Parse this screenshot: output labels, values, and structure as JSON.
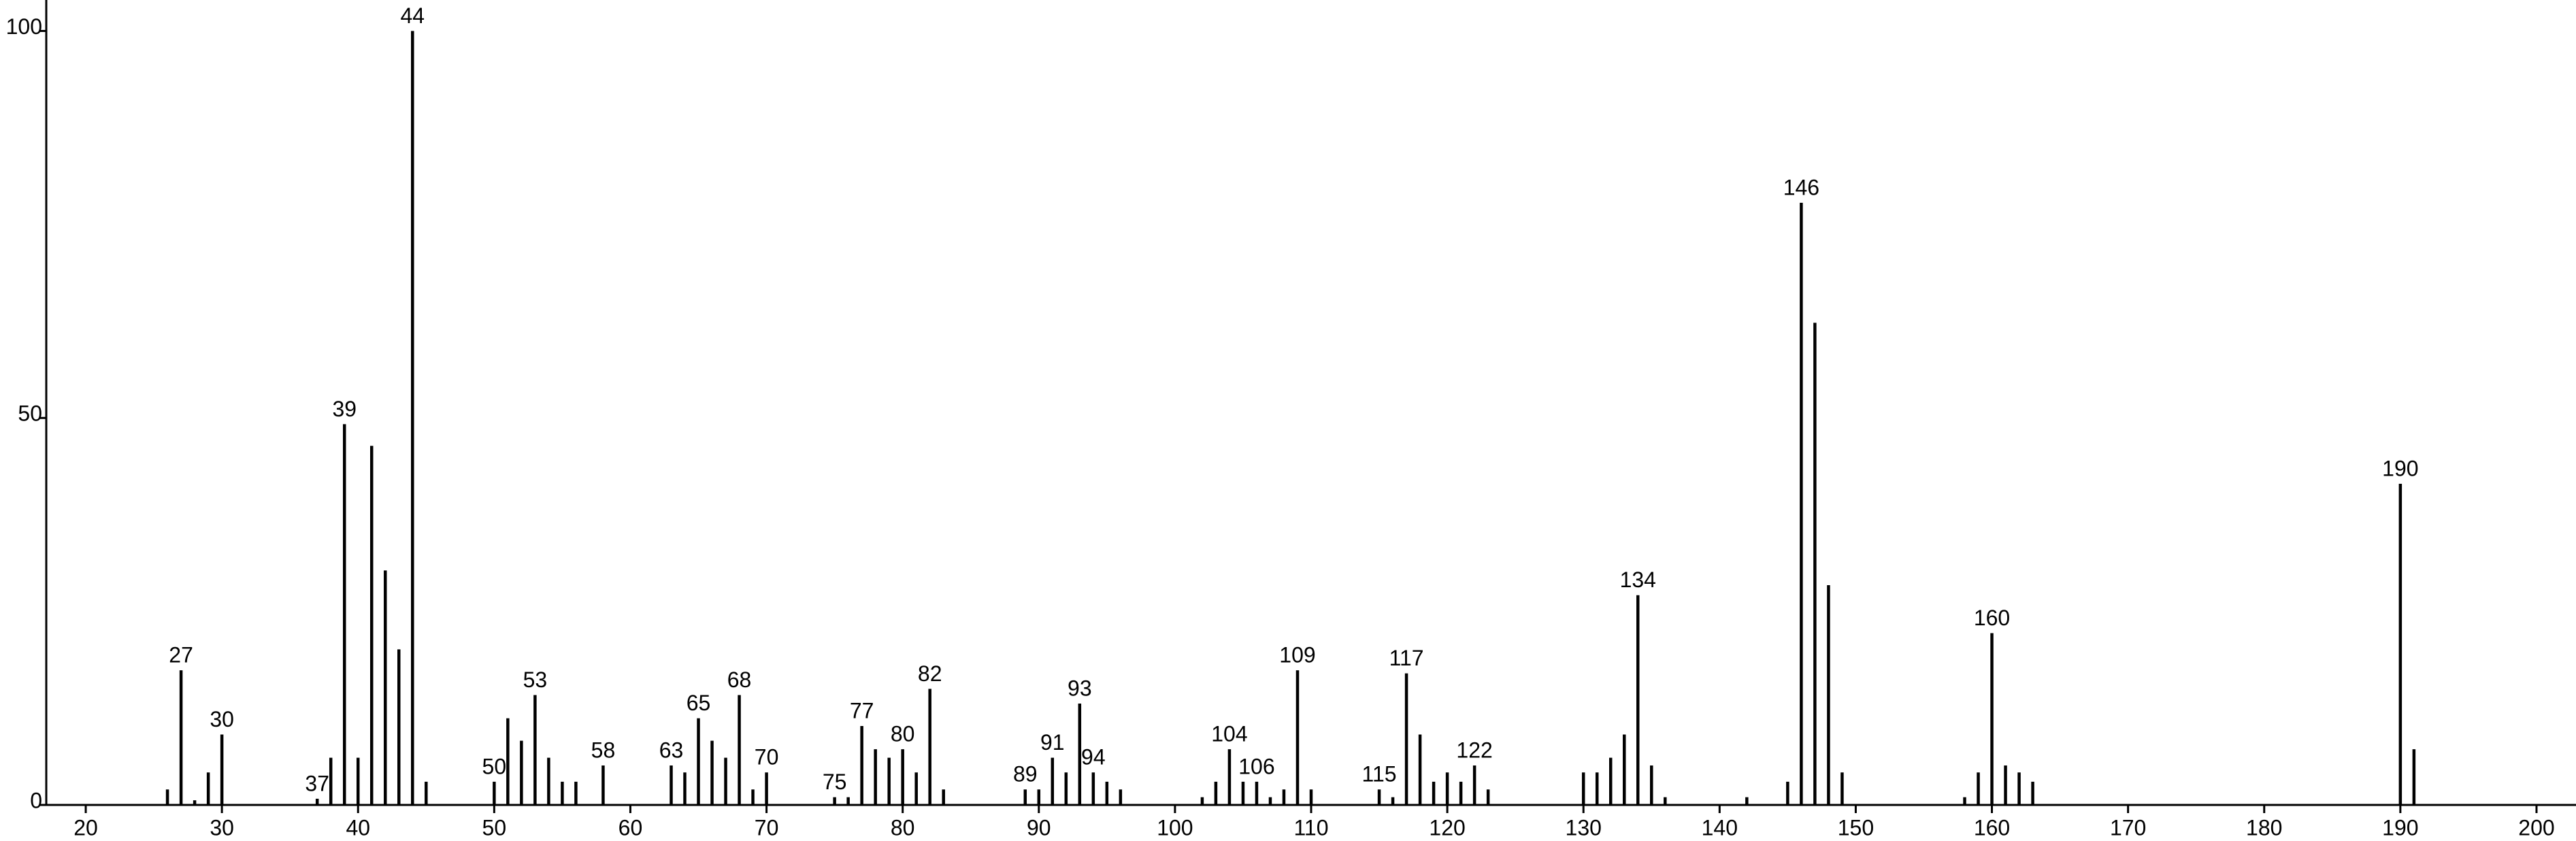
{
  "chart_data": {
    "type": "bar",
    "color": "#000000",
    "x": [
      26,
      27,
      28,
      29,
      30,
      37,
      38,
      39,
      40,
      41,
      42,
      43,
      44,
      45,
      50,
      51,
      52,
      53,
      54,
      55,
      56,
      58,
      63,
      64,
      65,
      66,
      67,
      68,
      69,
      70,
      75,
      76,
      77,
      78,
      79,
      80,
      81,
      82,
      83,
      89,
      90,
      91,
      92,
      93,
      94,
      95,
      96,
      102,
      103,
      104,
      105,
      106,
      107,
      108,
      109,
      110,
      115,
      116,
      117,
      118,
      119,
      120,
      121,
      122,
      123,
      130,
      131,
      132,
      133,
      134,
      135,
      136,
      142,
      145,
      146,
      147,
      148,
      149,
      158,
      159,
      160,
      161,
      162,
      163,
      190,
      191
    ],
    "values": [
      2,
      17.4,
      0.6,
      4.2,
      9.1,
      0.8,
      6.1,
      49.2,
      6.1,
      46.4,
      30.3,
      20.1,
      100,
      3,
      3,
      11.2,
      8.3,
      14.2,
      6.1,
      3,
      3,
      5.1,
      5.1,
      4.2,
      11.2,
      8.3,
      6.1,
      14.2,
      2,
      4.2,
      1,
      1,
      10.2,
      7.2,
      6.1,
      7.2,
      4.2,
      15,
      2,
      2,
      2,
      6.1,
      4.2,
      13.1,
      4.2,
      3,
      2,
      1,
      3,
      7.2,
      3,
      3,
      1,
      2,
      17.4,
      2,
      2,
      1,
      17,
      9.1,
      3,
      4.2,
      3,
      5.1,
      2,
      4.2,
      4.2,
      6.1,
      9.1,
      27.1,
      5.1,
      1,
      1,
      3,
      77.8,
      62.3,
      28.4,
      4.2,
      1,
      4.2,
      22.2,
      5.1,
      4.2,
      3,
      41.5,
      7.2
    ],
    "peak_labels": [
      27,
      30,
      37,
      39,
      44,
      50,
      53,
      58,
      63,
      65,
      68,
      70,
      75,
      77,
      80,
      82,
      89,
      91,
      93,
      94,
      104,
      106,
      109,
      115,
      117,
      122,
      134,
      146,
      160,
      190
    ],
    "xlim": [
      17.1,
      202.9
    ],
    "xticks": [
      20,
      30,
      40,
      50,
      60,
      70,
      80,
      90,
      100,
      110,
      120,
      130,
      140,
      150,
      160,
      170,
      180,
      190,
      200
    ],
    "ylim": [
      0,
      104
    ],
    "yticks": [
      0,
      50,
      100
    ]
  }
}
